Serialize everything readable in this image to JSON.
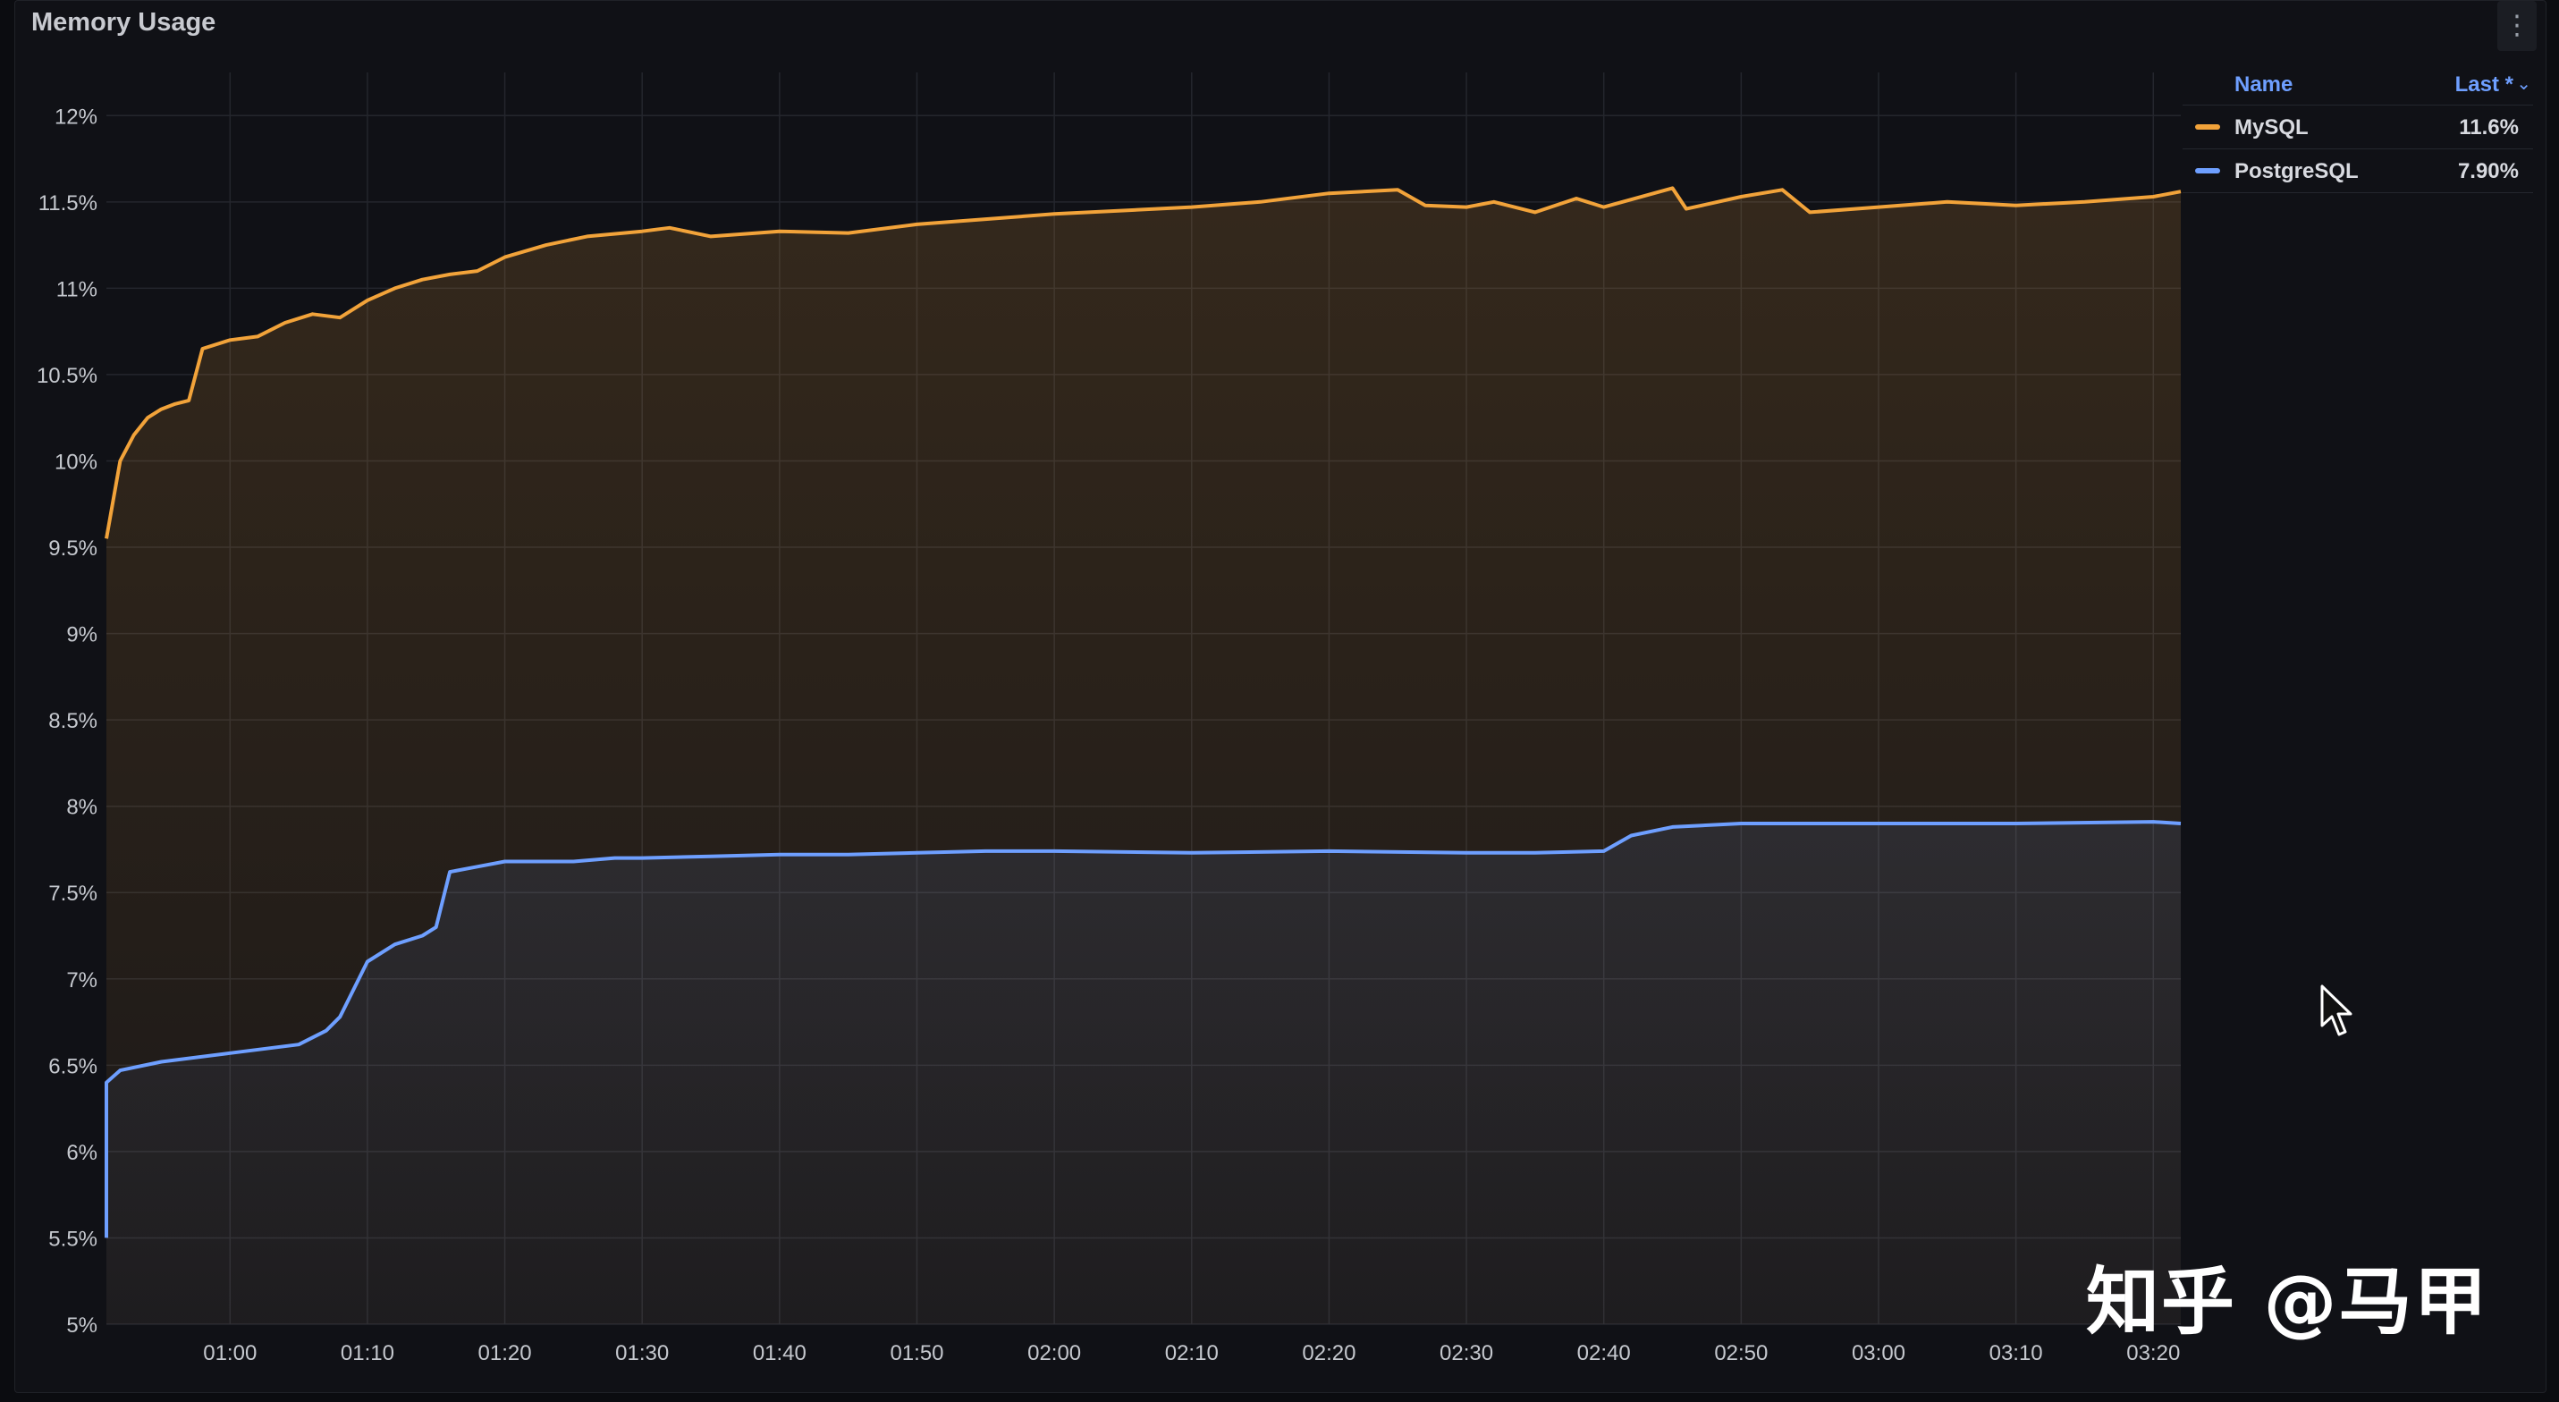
{
  "panel": {
    "title": "Memory Usage",
    "menu_icon": "kebab-menu-icon"
  },
  "legend": {
    "header_name": "Name",
    "header_last": "Last *",
    "sort_icon": "chevron-down-icon",
    "items": [
      {
        "name": "MySQL",
        "last": "11.6%",
        "color": "#f2a33a"
      },
      {
        "name": "PostgreSQL",
        "last": "7.90%",
        "color": "#6e9fff"
      }
    ]
  },
  "watermark": "知乎 @马甲",
  "chart_data": {
    "type": "area",
    "title": "Memory Usage",
    "xlabel": "",
    "ylabel": "",
    "x_range": [
      "00:51",
      "03:22"
    ],
    "x_ticks": [
      "01:00",
      "01:10",
      "01:20",
      "01:30",
      "01:40",
      "01:50",
      "02:00",
      "02:10",
      "02:20",
      "02:30",
      "02:40",
      "02:50",
      "03:00",
      "03:10",
      "03:20"
    ],
    "y_ticks": [
      "5%",
      "5.5%",
      "6%",
      "6.5%",
      "7%",
      "7.5%",
      "8%",
      "8.5%",
      "9%",
      "9.5%",
      "10%",
      "10.5%",
      "11%",
      "11.5%",
      "12%"
    ],
    "ylim": [
      5,
      12.25
    ],
    "grid": true,
    "legend_position": "right",
    "series": [
      {
        "name": "MySQL",
        "color": "#f2a33a",
        "x": [
          "00:51",
          "00:52",
          "00:53",
          "00:54",
          "00:55",
          "00:56",
          "00:57",
          "00:58",
          "01:00",
          "01:02",
          "01:04",
          "01:06",
          "01:08",
          "01:10",
          "01:12",
          "01:14",
          "01:16",
          "01:18",
          "01:20",
          "01:23",
          "01:26",
          "01:30",
          "01:32",
          "01:35",
          "01:40",
          "01:45",
          "01:50",
          "01:55",
          "02:00",
          "02:05",
          "02:10",
          "02:15",
          "02:20",
          "02:25",
          "02:27",
          "02:30",
          "02:32",
          "02:35",
          "02:38",
          "02:40",
          "02:45",
          "02:46",
          "02:50",
          "02:53",
          "02:55",
          "03:00",
          "03:05",
          "03:10",
          "03:15",
          "03:20",
          "03:22"
        ],
        "values": [
          9.55,
          10.0,
          10.15,
          10.25,
          10.3,
          10.33,
          10.35,
          10.65,
          10.7,
          10.72,
          10.8,
          10.85,
          10.83,
          10.93,
          11.0,
          11.05,
          11.08,
          11.1,
          11.18,
          11.25,
          11.3,
          11.33,
          11.35,
          11.3,
          11.33,
          11.32,
          11.37,
          11.4,
          11.43,
          11.45,
          11.47,
          11.5,
          11.55,
          11.57,
          11.48,
          11.47,
          11.5,
          11.44,
          11.52,
          11.47,
          11.58,
          11.46,
          11.53,
          11.57,
          11.44,
          11.47,
          11.5,
          11.48,
          11.5,
          11.53,
          11.56
        ]
      },
      {
        "name": "PostgreSQL",
        "color": "#6e9fff",
        "x": [
          "00:51",
          "00:51",
          "00:52",
          "00:55",
          "01:00",
          "01:05",
          "01:07",
          "01:08",
          "01:10",
          "01:12",
          "01:14",
          "01:15",
          "01:16",
          "01:18",
          "01:20",
          "01:25",
          "01:28",
          "01:30",
          "01:35",
          "01:40",
          "01:45",
          "01:50",
          "01:55",
          "02:00",
          "02:10",
          "02:20",
          "02:30",
          "02:35",
          "02:40",
          "02:42",
          "02:45",
          "02:50",
          "03:00",
          "03:10",
          "03:20",
          "03:22"
        ],
        "values": [
          5.5,
          6.4,
          6.47,
          6.52,
          6.57,
          6.62,
          6.7,
          6.78,
          7.1,
          7.2,
          7.25,
          7.3,
          7.62,
          7.65,
          7.68,
          7.68,
          7.7,
          7.7,
          7.71,
          7.72,
          7.72,
          7.73,
          7.74,
          7.74,
          7.73,
          7.74,
          7.73,
          7.73,
          7.74,
          7.83,
          7.88,
          7.9,
          7.9,
          7.9,
          7.91,
          7.9
        ]
      }
    ]
  }
}
